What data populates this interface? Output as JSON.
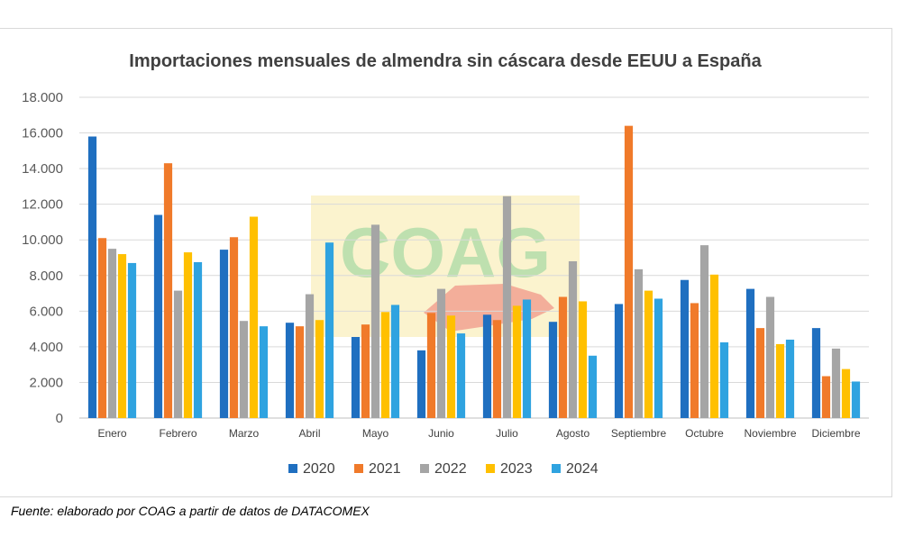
{
  "chart_data": {
    "type": "bar",
    "title": "Importaciones mensuales de almendra sin cáscara desde EEUU a España",
    "xlabel": "",
    "ylabel": "",
    "ylim": [
      0,
      18000
    ],
    "yticks": [
      {
        "value": 0,
        "label": "0"
      },
      {
        "value": 2000,
        "label": "2.000"
      },
      {
        "value": 4000,
        "label": "4.000"
      },
      {
        "value": 6000,
        "label": "6.000"
      },
      {
        "value": 8000,
        "label": "8.000"
      },
      {
        "value": 10000,
        "label": "10.000"
      },
      {
        "value": 12000,
        "label": "12.000"
      },
      {
        "value": 14000,
        "label": "14.000"
      },
      {
        "value": 16000,
        "label": "16.000"
      },
      {
        "value": 18000,
        "label": "18.000"
      }
    ],
    "grid": true,
    "legend_position": "bottom",
    "categories": [
      "Enero",
      "Febrero",
      "Marzo",
      "Abril",
      "Mayo",
      "Junio",
      "Julio",
      "Agosto",
      "Septiembre",
      "Octubre",
      "Noviembre",
      "Diciembre"
    ],
    "series": [
      {
        "name": "2020",
        "color": "#1f6fc0",
        "values": [
          15800,
          11400,
          9450,
          5350,
          4550,
          3800,
          5800,
          5400,
          6400,
          7750,
          7250,
          5050
        ]
      },
      {
        "name": "2021",
        "color": "#f07a2a",
        "values": [
          10100,
          14300,
          10150,
          5150,
          5250,
          5900,
          5500,
          6800,
          16400,
          6450,
          5050,
          2350
        ]
      },
      {
        "name": "2022",
        "color": "#a5a5a5",
        "values": [
          9500,
          7150,
          5450,
          6950,
          10850,
          7250,
          12450,
          8800,
          8350,
          9700,
          6800,
          3900
        ]
      },
      {
        "name": "2023",
        "color": "#ffc000",
        "values": [
          9200,
          9300,
          11300,
          5500,
          5950,
          5750,
          6300,
          6550,
          7150,
          8050,
          4150,
          2750
        ]
      },
      {
        "name": "2024",
        "color": "#2fa3e0",
        "values": [
          8700,
          8750,
          5150,
          9850,
          6350,
          4750,
          6650,
          3500,
          6700,
          4250,
          4400,
          2050
        ]
      }
    ]
  },
  "watermark": {
    "text": "COAG"
  },
  "source_note": "Fuente: elaborado por COAG a partir de datos de DATACOMEX"
}
